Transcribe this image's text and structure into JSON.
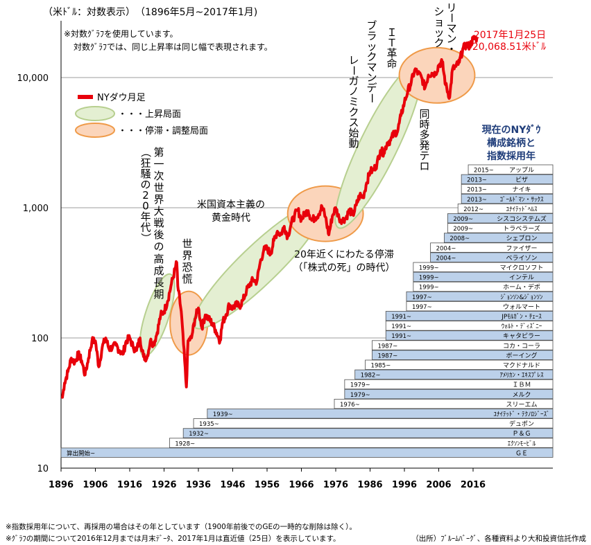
{
  "chart_data": {
    "type": "line",
    "scale": "log",
    "header": "（米ﾄﾞﾙ：対数表示）　（1896年5月~2017年1月)",
    "notes": [
      "※対数ｸﾞﾗﾌを使用しています。",
      "対数ｸﾞﾗﾌでは、同じ上昇率は同じ幅で表現されます。"
    ],
    "ylim": [
      10,
      25000
    ],
    "xlim": [
      1896,
      2017.1
    ],
    "y_ticks": [
      {
        "v": 10,
        "label": "10"
      },
      {
        "v": 100,
        "label": "100"
      },
      {
        "v": 1000,
        "label": "1,000"
      },
      {
        "v": 10000,
        "label": "10,000"
      }
    ],
    "x_ticks": [
      1896,
      1906,
      1916,
      1926,
      1936,
      1946,
      1956,
      1966,
      1976,
      1986,
      1996,
      2006,
      2016
    ],
    "grid": "horizontal",
    "series": [
      {
        "name": "NYダウ月足",
        "color": "#e8000b",
        "x": [
          1896.4,
          1897,
          1898,
          1899,
          1900,
          1901,
          1902,
          1903,
          1904,
          1905,
          1906,
          1907,
          1908,
          1909,
          1910,
          1911,
          1912,
          1913,
          1914,
          1915,
          1916,
          1917,
          1918,
          1919,
          1920,
          1921,
          1922,
          1923,
          1924,
          1925,
          1926,
          1927,
          1928,
          1929.7,
          1930,
          1931,
          1932.5,
          1933,
          1934,
          1935,
          1936,
          1937,
          1938,
          1939,
          1940,
          1941,
          1942.3,
          1943,
          1944,
          1945,
          1946,
          1947,
          1948,
          1949,
          1950,
          1951,
          1952,
          1953,
          1954,
          1955,
          1956,
          1957,
          1958,
          1959,
          1960,
          1961,
          1962,
          1963,
          1964,
          1965,
          1966,
          1967,
          1968,
          1969,
          1970,
          1971,
          1972,
          1973,
          1974,
          1975,
          1976,
          1977,
          1978,
          1979,
          1980,
          1981,
          1982,
          1983,
          1984,
          1985,
          1986,
          1987,
          1988,
          1989,
          1990,
          1991,
          1992,
          1993,
          1994,
          1995,
          1996,
          1997,
          1998,
          1999,
          2000,
          2001,
          2002,
          2003,
          2004,
          2005,
          2006,
          2007,
          2008,
          2009.2,
          2010,
          2011,
          2012,
          2013,
          2014,
          2015,
          2016,
          2017.1
        ],
        "values": [
          35,
          45,
          55,
          70,
          65,
          75,
          67,
          52,
          70,
          95,
          95,
          60,
          85,
          100,
          82,
          85,
          88,
          80,
          75,
          95,
          100,
          85,
          80,
          100,
          72,
          70,
          95,
          90,
          110,
          150,
          160,
          190,
          250,
          380,
          250,
          160,
          42,
          95,
          100,
          140,
          170,
          120,
          150,
          140,
          130,
          115,
          95,
          130,
          150,
          180,
          170,
          180,
          175,
          195,
          230,
          260,
          280,
          270,
          380,
          470,
          490,
          440,
          560,
          660,
          620,
          720,
          600,
          750,
          870,
          960,
          810,
          900,
          950,
          800,
          840,
          890,
          1020,
          850,
          620,
          860,
          1000,
          830,
          800,
          840,
          960,
          880,
          1050,
          1250,
          1210,
          1550,
          1900,
          1950,
          2170,
          2750,
          2640,
          3160,
          3300,
          3750,
          3840,
          5100,
          6450,
          7900,
          9200,
          11450,
          10800,
          10000,
          8350,
          10450,
          10800,
          10700,
          12450,
          13250,
          8800,
          7060,
          11580,
          12200,
          13100,
          16580,
          17800,
          17400,
          19800,
          20068.51
        ]
      }
    ],
    "legend": {
      "placement": "top-left",
      "items": [
        {
          "label": "NYダウ月足",
          "kind": "line",
          "color": "#e8000b"
        },
        {
          "label": "・・・上昇局面",
          "kind": "ellipse",
          "fill": "#e5efd4",
          "stroke": "#b5cc8c"
        },
        {
          "label": "・・・停滞・調整局面",
          "kind": "ellipse",
          "fill": "#fbd7be",
          "stroke": "#ef9a4a"
        }
      ]
    },
    "regions": [
      {
        "kind": "rise",
        "cx": 1924,
        "cy": 150,
        "rxYears": 4.2,
        "tilt": -72
      },
      {
        "kind": "stall",
        "cx": 1933.2,
        "cy": 130,
        "rxYears": 6.5,
        "tilt": 0
      },
      {
        "kind": "rise",
        "cx": 1953.5,
        "cy": 360,
        "rxYears": 23,
        "tilt": -44
      },
      {
        "kind": "stall",
        "cx": 1973,
        "cy": 900,
        "rxYears": 11,
        "tilt": 0
      },
      {
        "kind": "rise",
        "cx": 1988.5,
        "cy": 3000,
        "rxYears": 15.5,
        "tilt": -64
      },
      {
        "kind": "stall",
        "cx": 2005.5,
        "cy": 10400,
        "rxYears": 11,
        "tilt": 0
      }
    ],
    "annotations": [
      {
        "text": "第一次世界大戦後の",
        "vertical": true
      },
      {
        "text": "（狂騒の20年代）",
        "vertical": true
      },
      {
        "text": "高成長期",
        "vertical": true
      },
      {
        "text": "世界恐慌",
        "vertical": true
      },
      {
        "text": "米国資本主義の",
        "vertical": false
      },
      {
        "text": "黄金時代",
        "vertical": false
      },
      {
        "text": "20年近くにわたる停滞",
        "vertical": false
      },
      {
        "text": "（「株式の死」の時代）",
        "vertical": false
      },
      {
        "text": "レーガノミクス始動",
        "vertical": true
      },
      {
        "text": "ブラックマンデー",
        "vertical": true
      },
      {
        "text": "ＩＴ革命",
        "vertical": true
      },
      {
        "text": "同時多発テロ",
        "vertical": true
      },
      {
        "text": "リーマン・",
        "vertical": true
      },
      {
        "text": "ショック",
        "vertical": true
      }
    ],
    "last_value_label": [
      "2017年1月25日",
      "20,068.51米ﾄﾞﾙ"
    ],
    "components_title": [
      "現在のNYﾀﾞｳ",
      "構成銘柄と",
      "指数採用年"
    ],
    "components": [
      {
        "since": "2015~",
        "name": "アップル"
      },
      {
        "since": "2013~",
        "name": "ビザ"
      },
      {
        "since": "2013~",
        "name": "ナイキ"
      },
      {
        "since": "2013~",
        "name": "ｺﾞｰﾙﾄﾞﾏﾝ・ｻｯｸｽ"
      },
      {
        "since": "2012~",
        "name": "ﾕﾅｲﾃｯﾄﾞﾍﾙｽ"
      },
      {
        "since": "2009~",
        "name": "シスコシステムズ"
      },
      {
        "since": "2009~",
        "name": "トラベラーズ"
      },
      {
        "since": "2008~",
        "name": "シェブロン"
      },
      {
        "since": "2004~",
        "name": "ファイザー"
      },
      {
        "since": "2004~",
        "name": "ベライゾン"
      },
      {
        "since": "1999~",
        "name": "マイクロソフト"
      },
      {
        "since": "1999~",
        "name": "インテル"
      },
      {
        "since": "1999~",
        "name": "ホーム・デポ"
      },
      {
        "since": "1997~",
        "name": "ｼﾞｮﾝｿﾝ&ｼﾞｮﾝｿﾝ"
      },
      {
        "since": "1997~",
        "name": "ウォルマート"
      },
      {
        "since": "1991~",
        "name": "JPﾓﾙｶﾞﾝ・ﾁｪｰｽ"
      },
      {
        "since": "1991~",
        "name": "ｳｫﾙﾄ・ﾃﾞｨｽﾞﾆｰ"
      },
      {
        "since": "1991~",
        "name": "キャタピラー"
      },
      {
        "since": "1987~",
        "name": "コカ・コーラ"
      },
      {
        "since": "1987~",
        "name": "ボーイング"
      },
      {
        "since": "1985~",
        "name": "マクドナルド"
      },
      {
        "since": "1982~",
        "name": "ｱﾒﾘｶﾝ・ｴｷｽﾌﾟﾚｽ"
      },
      {
        "since": "1979~",
        "name": "ＩＢＭ"
      },
      {
        "since": "1979~",
        "name": "メルク"
      },
      {
        "since": "1976~",
        "name": "スリーエム"
      },
      {
        "since": "1939~",
        "name": "ﾕﾅｲﾃｯﾄﾞ・ﾃｸﾉﾛｼﾞｰｽﾞ"
      },
      {
        "since": "1935~",
        "name": "デュポン"
      },
      {
        "since": "1932~",
        "name": "Ｐ＆Ｇ"
      },
      {
        "since": "1928~",
        "name": "ｴｸｿﾝﾓｰﾋﾞﾙ"
      },
      {
        "since": "算出開始~",
        "name": "ＧＥ"
      }
    ],
    "footnotes": [
      "※指数採用年について、再採用の場合はその年としています（1900年前後でのGEの一時的な削除は除く）。",
      "※ｸﾞﾗﾌの期間について2016年12月までは月末ﾃﾞｰﾀ、2017年1月は直近値（25日）を表示しています。"
    ],
    "source": "（出所）ﾌﾞﾙｰﾑﾊﾞｰｸﾞ、各種資料より大和投資信託作成"
  }
}
